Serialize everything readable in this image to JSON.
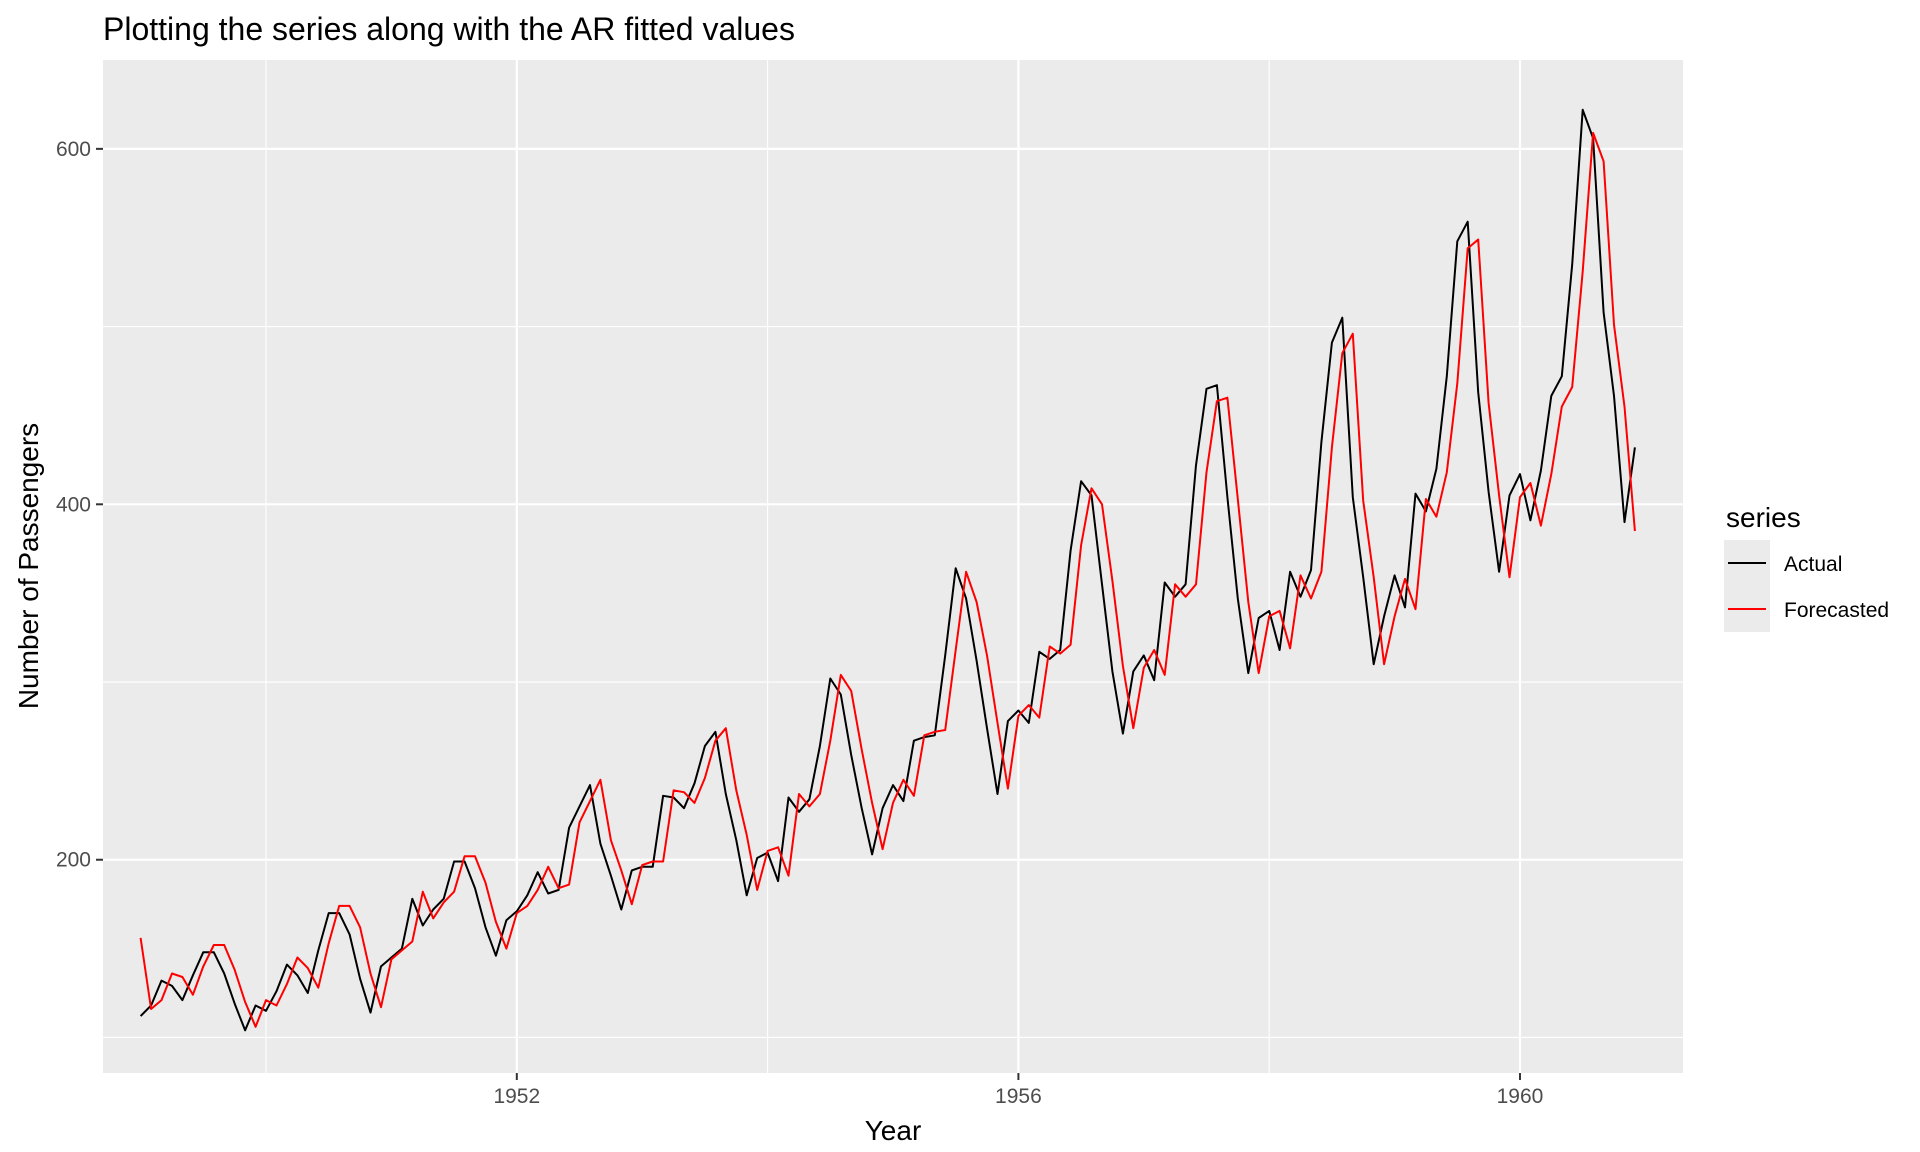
{
  "chart_data": {
    "type": "line",
    "title": "Plotting the series along with the AR fitted values",
    "xlabel": "Year",
    "ylabel": "Number of Passengers",
    "xlim": [
      1948.7,
      1961.3
    ],
    "ylim": [
      80,
      650
    ],
    "x_ticks": [
      1952,
      1956,
      1960
    ],
    "x_tick_labels": [
      "1952",
      "1956",
      "1960"
    ],
    "y_ticks": [
      200,
      400,
      600
    ],
    "y_tick_labels": [
      "200",
      "400",
      "600"
    ],
    "grid": true,
    "legend": {
      "title": "series",
      "position": "right"
    },
    "x_start": 1949,
    "x_step": 0.08333333,
    "series": [
      {
        "name": "Actual",
        "color": "#000000",
        "values": [
          112,
          118,
          132,
          129,
          121,
          135,
          148,
          148,
          136,
          119,
          104,
          118,
          115,
          126,
          141,
          135,
          125,
          149,
          170,
          170,
          158,
          133,
          114,
          140,
          145,
          150,
          178,
          163,
          172,
          178,
          199,
          199,
          184,
          162,
          146,
          166,
          171,
          180,
          193,
          181,
          183,
          218,
          230,
          242,
          209,
          191,
          172,
          194,
          196,
          196,
          236,
          235,
          229,
          243,
          264,
          272,
          237,
          211,
          180,
          201,
          204,
          188,
          235,
          227,
          234,
          264,
          302,
          293,
          259,
          229,
          203,
          229,
          242,
          233,
          267,
          269,
          270,
          315,
          364,
          347,
          312,
          274,
          237,
          278,
          284,
          277,
          317,
          313,
          318,
          374,
          413,
          405,
          355,
          306,
          271,
          306,
          315,
          301,
          356,
          348,
          355,
          422,
          465,
          467,
          404,
          347,
          305,
          336,
          340,
          318,
          362,
          348,
          363,
          435,
          491,
          505,
          404,
          359,
          310,
          337,
          360,
          342,
          406,
          396,
          420,
          472,
          548,
          559,
          463,
          407,
          362,
          405,
          417,
          391,
          419,
          461,
          472,
          535,
          622,
          606,
          508,
          461,
          390,
          432
        ]
      },
      {
        "name": "Forecasted",
        "color": "#ff0000",
        "values": [
          156,
          116,
          121,
          136,
          134,
          124,
          140,
          152,
          152,
          138,
          120,
          106,
          121,
          118,
          130,
          145,
          139,
          128,
          153,
          174,
          174,
          162,
          136,
          117,
          144,
          149,
          154,
          182,
          167,
          176,
          182,
          202,
          202,
          187,
          165,
          150,
          170,
          174,
          183,
          196,
          184,
          186,
          221,
          233,
          245,
          211,
          194,
          175,
          197,
          199,
          199,
          239,
          238,
          232,
          246,
          267,
          274,
          239,
          214,
          183,
          205,
          207,
          191,
          237,
          230,
          237,
          267,
          304,
          295,
          262,
          232,
          206,
          232,
          245,
          236,
          270,
          272,
          273,
          318,
          362,
          345,
          315,
          277,
          240,
          281,
          287,
          280,
          320,
          316,
          321,
          377,
          409,
          400,
          357,
          309,
          274,
          308,
          318,
          304,
          355,
          348,
          355,
          418,
          458,
          460,
          403,
          345,
          305,
          337,
          340,
          319,
          360,
          347,
          362,
          432,
          485,
          496,
          402,
          359,
          310,
          337,
          358,
          341,
          403,
          393,
          418,
          468,
          544,
          549,
          457,
          405,
          359,
          404,
          412,
          388,
          417,
          455,
          466,
          531,
          609,
          593,
          501,
          455,
          385
        ]
      }
    ]
  }
}
